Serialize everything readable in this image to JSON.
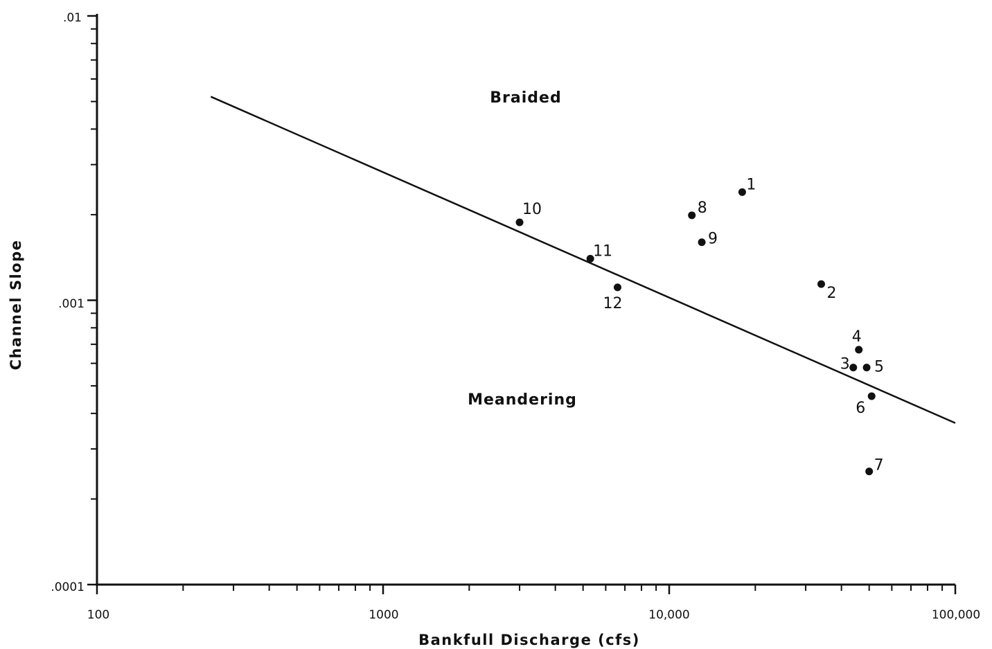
{
  "chart_data": {
    "type": "scatter",
    "title": "",
    "xlabel": "Bankfull Discharge (cfs)",
    "ylabel": "Channel Slope",
    "x_scale": "log",
    "y_scale": "log",
    "xlim": [
      100,
      100000
    ],
    "ylim": [
      0.0001,
      0.01
    ],
    "x_tick_labels": [
      "100",
      "1000",
      "10,000",
      "100,000"
    ],
    "y_tick_labels": [
      ".0001",
      ".001",
      ".01"
    ],
    "grid": false,
    "legend": "none",
    "region_labels": [
      "Braided",
      "Meandering"
    ],
    "points": [
      {
        "label": "1",
        "x": 18000,
        "y": 0.0024
      },
      {
        "label": "2",
        "x": 34000,
        "y": 0.00114
      },
      {
        "label": "3",
        "x": 44000,
        "y": 0.00058
      },
      {
        "label": "4",
        "x": 46000,
        "y": 0.00067
      },
      {
        "label": "5",
        "x": 49000,
        "y": 0.00058
      },
      {
        "label": "6",
        "x": 51000,
        "y": 0.00046
      },
      {
        "label": "7",
        "x": 50000,
        "y": 0.00025
      },
      {
        "label": "8",
        "x": 12000,
        "y": 0.00199
      },
      {
        "label": "9",
        "x": 13000,
        "y": 0.0016
      },
      {
        "label": "10",
        "x": 3000,
        "y": 0.00188
      },
      {
        "label": "11",
        "x": 5300,
        "y": 0.0014
      },
      {
        "label": "12",
        "x": 6600,
        "y": 0.00111
      }
    ],
    "threshold_line": {
      "x": [
        250,
        100000
      ],
      "y": [
        0.0052,
        0.00037
      ]
    }
  }
}
